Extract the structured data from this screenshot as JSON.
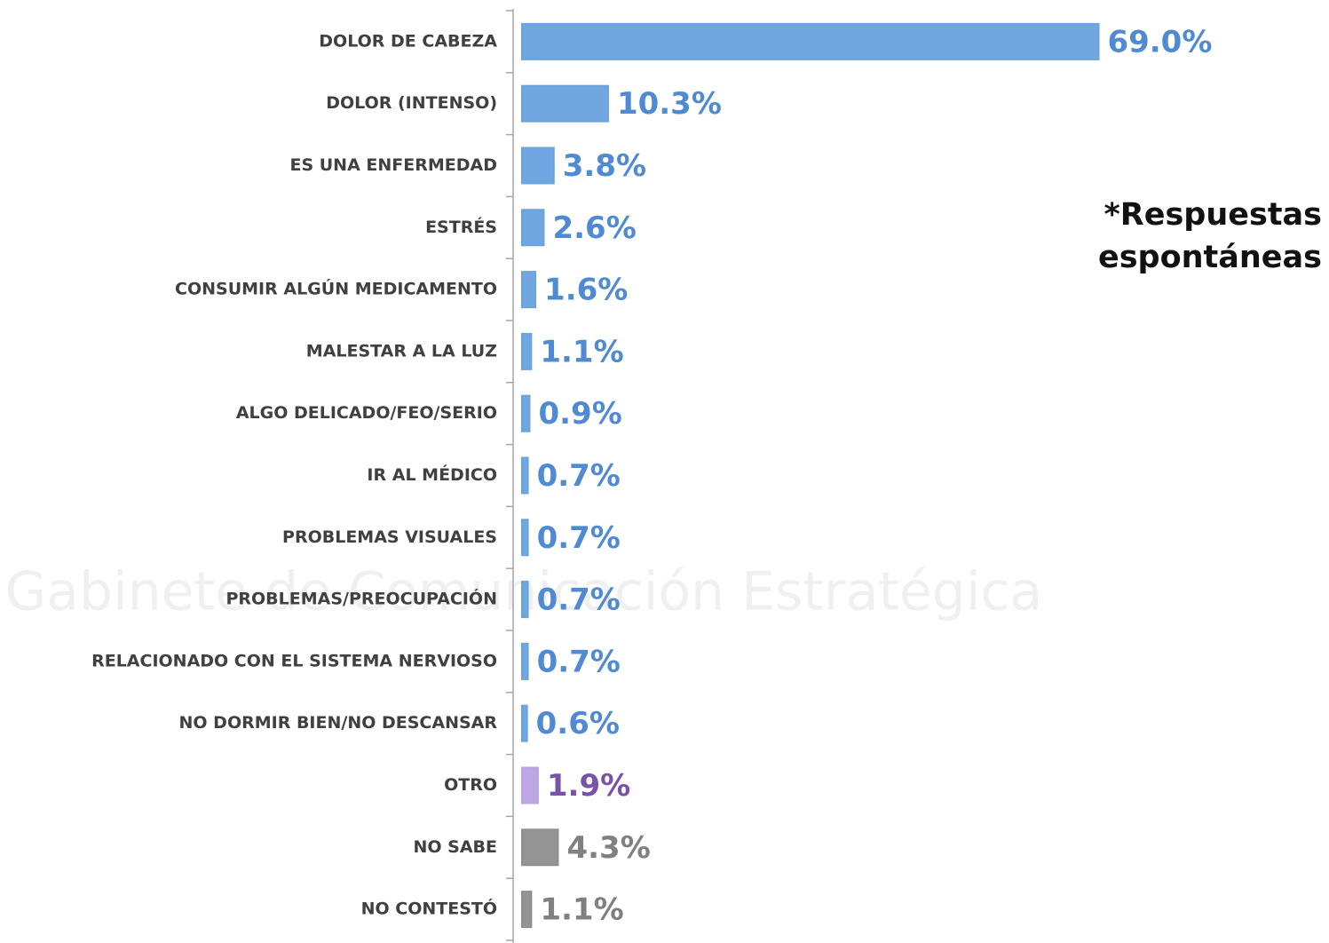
{
  "chart_data": {
    "type": "bar",
    "orientation": "horizontal",
    "annotation": "*Respuestas espontáneas",
    "watermark": "Gabinete de Comunicación Estratégica",
    "categories": [
      "DOLOR DE CABEZA",
      "DOLOR (INTENSO)",
      "ES UNA ENFERMEDAD",
      "ESTRÉS",
      "CONSUMIR ALGÚN MEDICAMENTO",
      "MALESTAR A LA LUZ",
      "ALGO DELICADO/FEO/SERIO",
      "IR AL MÉDICO",
      "PROBLEMAS VISUALES",
      "PROBLEMAS/PREOCUPACIÓN",
      "RELACIONADO CON EL SISTEMA NERVIOSO",
      "NO DORMIR BIEN/NO DESCANSAR",
      "OTRO",
      "NO SABE",
      "NO CONTESTÓ"
    ],
    "values": [
      69.0,
      10.3,
      3.8,
      2.6,
      1.6,
      1.1,
      0.9,
      0.7,
      0.7,
      0.7,
      0.7,
      0.6,
      1.9,
      4.3,
      1.1
    ],
    "value_labels": [
      "69.0%",
      "10.3%",
      "3.8%",
      "2.6%",
      "1.6%",
      "1.1%",
      "0.9%",
      "0.7%",
      "0.7%",
      "0.7%",
      "0.7%",
      "0.6%",
      "1.9%",
      "4.3%",
      "1.1%"
    ],
    "colors": [
      "#6aa3e0",
      "#6aa3e0",
      "#6aa3e0",
      "#6aa3e0",
      "#6aa3e0",
      "#6aa3e0",
      "#6aa3e0",
      "#6aa3e0",
      "#6aa3e0",
      "#6aa3e0",
      "#6aa3e0",
      "#6aa3e0",
      "#b9a3e3",
      "#8f8f8f",
      "#8f8f8f"
    ],
    "value_label_colors": [
      "#4f8ad3",
      "#4f8ad3",
      "#4f8ad3",
      "#4f8ad3",
      "#4f8ad3",
      "#4f8ad3",
      "#4f8ad3",
      "#4f8ad3",
      "#4f8ad3",
      "#4f8ad3",
      "#4f8ad3",
      "#4f8ad3",
      "#7b52a8",
      "#808080",
      "#808080"
    ],
    "xlim": [
      0,
      80
    ]
  }
}
